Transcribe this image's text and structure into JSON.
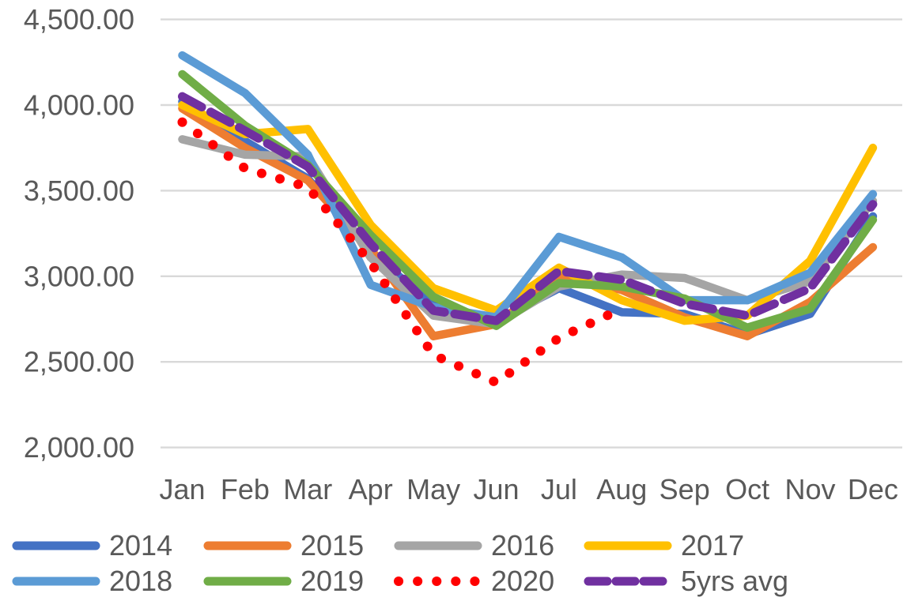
{
  "chart_data": {
    "type": "line",
    "title": "",
    "xlabel": "",
    "ylabel": "",
    "grid": true,
    "legend_position": "bottom",
    "categories": [
      "Jan",
      "Feb",
      "Mar",
      "Apr",
      "May",
      "Jun",
      "Jul",
      "Aug",
      "Sep",
      "Oct",
      "Nov",
      "Dec"
    ],
    "y_axis": {
      "min": 2000,
      "max": 4500,
      "step": 500,
      "ticks": [
        {
          "label": "4,500.00",
          "value": 4500
        },
        {
          "label": "4,000.00",
          "value": 4000
        },
        {
          "label": "3,500.00",
          "value": 3500
        },
        {
          "label": "3,000.00",
          "value": 3000
        },
        {
          "label": "2,500.00",
          "value": 2500
        },
        {
          "label": "2,000.00",
          "value": 2000
        }
      ]
    },
    "series": [
      {
        "name": "2014",
        "color": "#4472C4",
        "style": "solid",
        "values": [
          4020,
          3790,
          3570,
          3140,
          2830,
          2740,
          2930,
          2790,
          2780,
          2660,
          2780,
          3350
        ]
      },
      {
        "name": "2015",
        "color": "#ED7D31",
        "style": "solid",
        "values": [
          3980,
          3750,
          3560,
          3160,
          2650,
          2720,
          3000,
          2920,
          2760,
          2650,
          2850,
          3170
        ]
      },
      {
        "name": "2016",
        "color": "#A5A5A5",
        "style": "solid",
        "values": [
          3800,
          3710,
          3700,
          3110,
          2770,
          2720,
          2940,
          3010,
          2990,
          2860,
          2970,
          3440
        ]
      },
      {
        "name": "2017",
        "color": "#FFC000",
        "style": "solid",
        "values": [
          4000,
          3830,
          3860,
          3300,
          2930,
          2800,
          3050,
          2860,
          2740,
          2770,
          3090,
          3750
        ]
      },
      {
        "name": "2018",
        "color": "#5B9BD5",
        "style": "solid",
        "values": [
          4290,
          4070,
          3710,
          2950,
          2820,
          2760,
          3230,
          3110,
          2860,
          2860,
          3020,
          3480
        ]
      },
      {
        "name": "2019",
        "color": "#70AD47",
        "style": "solid",
        "values": [
          4180,
          3880,
          3650,
          3240,
          2880,
          2710,
          2960,
          2940,
          2870,
          2700,
          2810,
          3330
        ]
      },
      {
        "name": "2020",
        "color": "#FF0000",
        "style": "dotted",
        "values": [
          3900,
          3630,
          3520,
          3080,
          2540,
          2380,
          2640,
          2810
        ]
      },
      {
        "name": "5yrs avg",
        "color": "#7030A0",
        "style": "dashed",
        "values": [
          4050,
          3850,
          3640,
          3190,
          2800,
          2740,
          3030,
          2980,
          2840,
          2770,
          2930,
          3420
        ]
      }
    ]
  },
  "style": {
    "gridline_color": "#D9D9D9",
    "text_color": "#595959",
    "background_color": "#FFFFFF"
  }
}
